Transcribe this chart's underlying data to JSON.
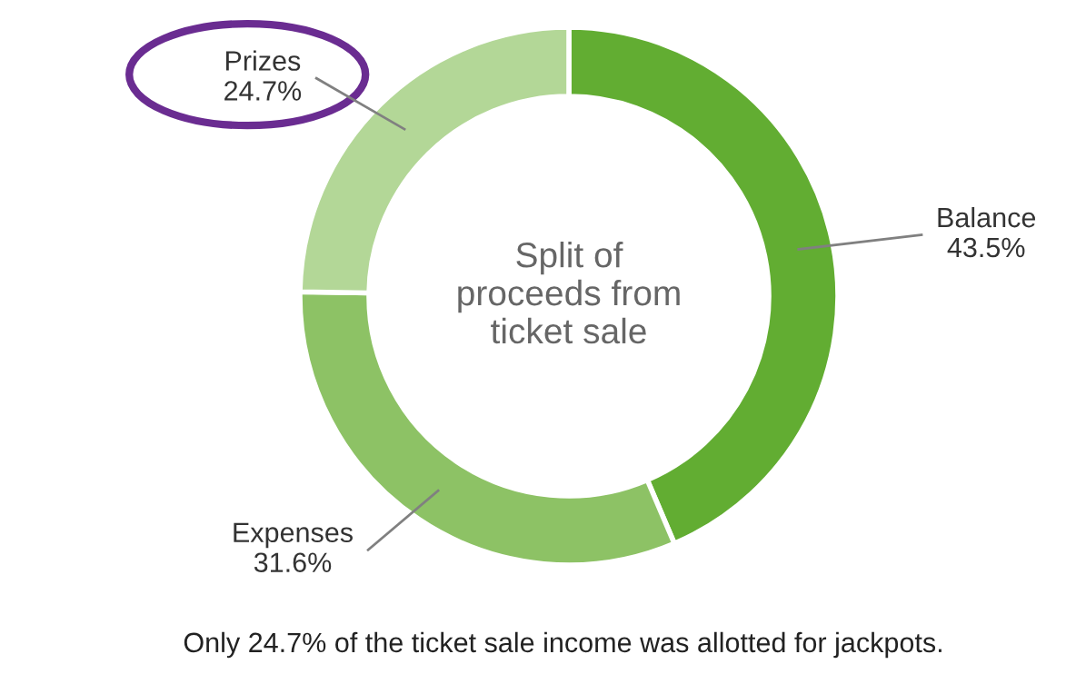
{
  "chart_data": {
    "type": "donut",
    "title": "Split of proceeds from ticket sale",
    "categories": [
      "Balance",
      "Expenses",
      "Prizes"
    ],
    "values": [
      43.5,
      31.6,
      24.7
    ],
    "value_labels": [
      "43.5%",
      "31.6%",
      "24.7%"
    ],
    "colors": [
      "#62ad32",
      "#8dc265",
      "#b3d797"
    ],
    "legend": false,
    "annotations": [
      "Only 24.7% of the ticket sale income was allotted for jackpots."
    ]
  }
}
